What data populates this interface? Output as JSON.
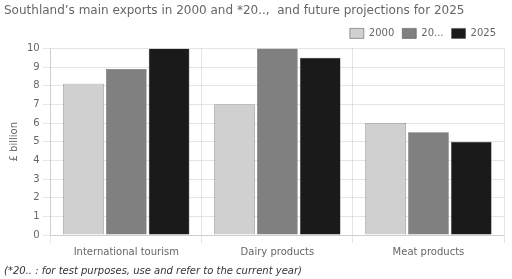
{
  "chart_data": {
    "type": "bar",
    "title": "Southland’s main exports in 2000 and *20..,  and future projections for 2025",
    "ylabel": "£ billion",
    "footnote": "(*20.. : for test purposes, use and refer to the current year)",
    "categories": [
      "International tourism",
      "Dairy products",
      "Meat products"
    ],
    "series": [
      {
        "name": "2000",
        "color": "#d0d0d0",
        "values": [
          8.1,
          7.0,
          6.0
        ]
      },
      {
        "name": "20...",
        "color": "#808080",
        "values": [
          8.9,
          10.0,
          5.5
        ]
      },
      {
        "name": "2025",
        "color": "#1a1a1a",
        "values": [
          10.0,
          9.5,
          5.0
        ]
      }
    ],
    "ylim": [
      0,
      10
    ],
    "yticks": [
      0,
      1,
      2,
      3,
      4,
      5,
      6,
      7,
      8,
      9,
      10
    ],
    "grid": true,
    "legend": "upper right"
  }
}
